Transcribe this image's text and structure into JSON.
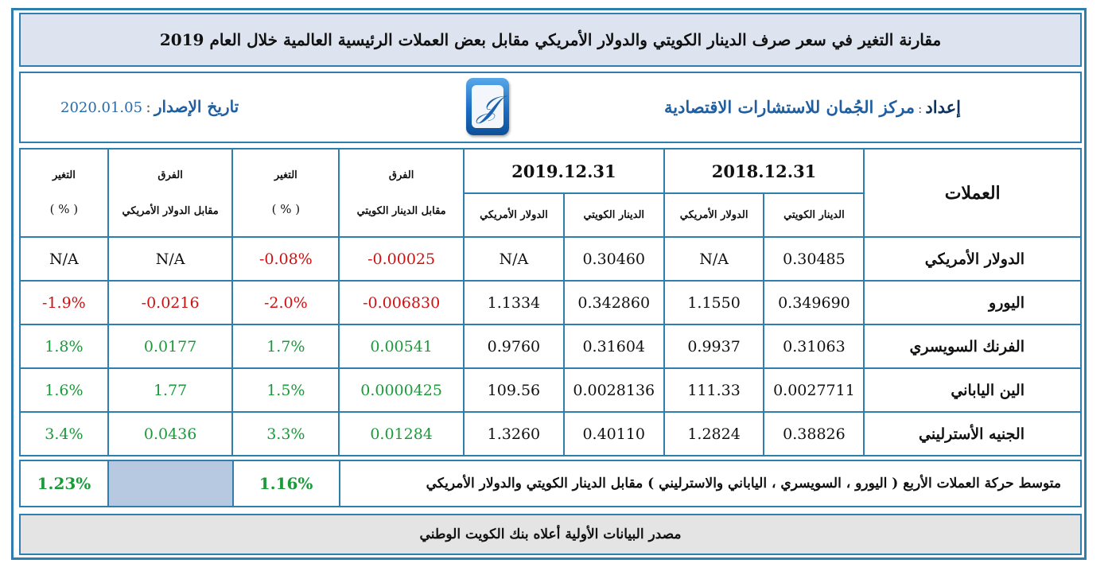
{
  "title": "مقارنة التغير في سعر صرف الدينار الكويتي والدولار الأمريكي مقابل بعض العملات الرئيسية العالمية خلال العام 2019",
  "info": {
    "prepared_label": "إعداد",
    "prepared_by": "مركز الجُمان للاستشارات الاقتصادية",
    "issue_label": "تاريخ الإصدار",
    "issue_date": "2020.01.05",
    "logo_icon": "aljuman-logo-icon"
  },
  "table": {
    "headers": {
      "currencies": "العملات",
      "date_2018": "2018.12.31",
      "date_2019": "2019.12.31",
      "kwd": "الدينار الكويتي",
      "usd": "الدولار الأمريكي",
      "diff_kwd_1": "الفرق",
      "diff_kwd_2": "مقابل الدينار الكويتي",
      "change_1": "التغير",
      "change_2": "( % )",
      "diff_usd_1": "الفرق",
      "diff_usd_2": "مقابل الدولار الأمريكي"
    },
    "rows": [
      {
        "name": "الدولار الأمريكي",
        "kwd_2018": "0.30485",
        "usd_2018": "N/A",
        "kwd_2019": "0.30460",
        "usd_2019": "N/A",
        "diff_kwd": "-0.00025",
        "change_kwd": "-0.08%",
        "diff_usd": "N/A",
        "change_usd": "N/A"
      },
      {
        "name": "اليورو",
        "kwd_2018": "0.349690",
        "usd_2018": "1.1550",
        "kwd_2019": "0.342860",
        "usd_2019": "1.1334",
        "diff_kwd": "-0.006830",
        "change_kwd": "-2.0%",
        "diff_usd": "-0.0216",
        "change_usd": "-1.9%"
      },
      {
        "name": "الفرنك السويسري",
        "kwd_2018": "0.31063",
        "usd_2018": "0.9937",
        "kwd_2019": "0.31604",
        "usd_2019": "0.9760",
        "diff_kwd": "0.00541",
        "change_kwd": "1.7%",
        "diff_usd": "0.0177",
        "change_usd": "1.8%"
      },
      {
        "name": "الين الياباني",
        "kwd_2018": "0.0027711",
        "usd_2018": "111.33",
        "kwd_2019": "0.0028136",
        "usd_2019": "109.56",
        "diff_kwd": "0.0000425",
        "change_kwd": "1.5%",
        "diff_usd": "1.77",
        "change_usd": "1.6%"
      },
      {
        "name": "الجنيه الأسترليني",
        "kwd_2018": "0.38826",
        "usd_2018": "1.2824",
        "kwd_2019": "0.40110",
        "usd_2019": "1.3260",
        "diff_kwd": "0.01284",
        "change_kwd": "3.3%",
        "diff_usd": "0.0436",
        "change_usd": "3.4%"
      }
    ]
  },
  "average": {
    "label": "متوسط حركة العملات الأربع ( اليورو ، السويسري ، الياباني والاسترليني ) مقابل الدينار الكويتي والدولار الأمريكي",
    "change_kwd": "1.16%",
    "change_usd": "1.23%"
  },
  "source": "مصدر البيانات الأولية أعلاه بنك الكويت الوطني",
  "colors": {
    "border": "#2e7fb0",
    "title_bg": "#dde4f0",
    "negative": "#d01010",
    "positive": "#1b9a3a",
    "blank_cell": "#b7c9e0",
    "source_bg": "#e4e4e4"
  }
}
